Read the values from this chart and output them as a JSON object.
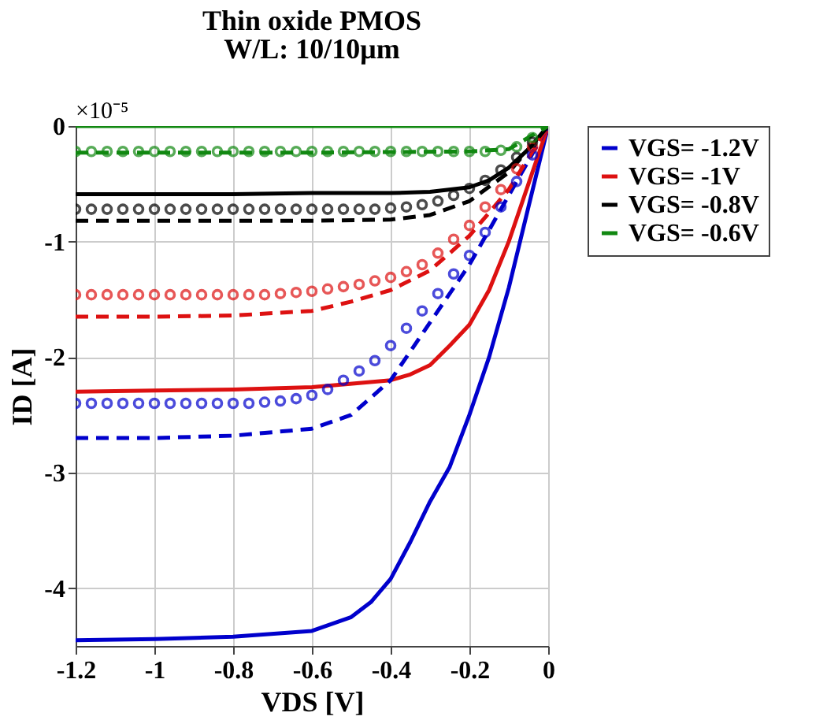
{
  "chart_data": {
    "type": "line",
    "title": "Thin oxide PMOS",
    "subtitle": "W/L: 10/10μm",
    "xlabel": "VDS [V]",
    "ylabel": "ID [A]",
    "annotations": [
      "×10⁻⁵"
    ],
    "xlim": [
      -1.2,
      0
    ],
    "ylim": [
      -4.5,
      0
    ],
    "xticks": [
      -1.2,
      -1,
      -0.8,
      -0.6,
      -0.4,
      -0.2,
      0
    ],
    "yticks": [
      -4,
      -3,
      -2,
      -1,
      0
    ],
    "grid": true,
    "legend": "right",
    "series": [
      {
        "name": "VGS= -1.2V",
        "color": "#0000cc",
        "line_style": "solid",
        "x": [
          -1.2,
          -1,
          -0.8,
          -0.6,
          -0.5,
          -0.45,
          -0.4,
          -0.35,
          -0.3,
          -0.25,
          -0.2,
          -0.15,
          -0.1,
          -0.05,
          0
        ],
        "values": [
          -4.45,
          -4.44,
          -4.42,
          -4.37,
          -4.25,
          -4.12,
          -3.92,
          -3.6,
          -3.25,
          -2.95,
          -2.5,
          -2.0,
          -1.4,
          -0.7,
          0
        ]
      },
      {
        "name": "VGS= -1V",
        "color": "#dd1111",
        "line_style": "solid",
        "x": [
          -1.2,
          -1,
          -0.8,
          -0.6,
          -0.4,
          -0.35,
          -0.3,
          -0.25,
          -0.2,
          -0.15,
          -0.1,
          -0.05,
          0
        ],
        "values": [
          -2.3,
          -2.29,
          -2.28,
          -2.26,
          -2.2,
          -2.15,
          -2.07,
          -1.9,
          -1.72,
          -1.42,
          -1.0,
          -0.5,
          0
        ]
      },
      {
        "name": "VGS= -0.8V",
        "color": "#000000",
        "line_style": "solid",
        "x": [
          -1.2,
          -1,
          -0.8,
          -0.6,
          -0.4,
          -0.3,
          -0.2,
          -0.15,
          -0.1,
          -0.05,
          0
        ],
        "values": [
          -0.59,
          -0.59,
          -0.59,
          -0.58,
          -0.58,
          -0.57,
          -0.53,
          -0.47,
          -0.36,
          -0.2,
          0
        ]
      },
      {
        "name": "VGS= -0.6V",
        "color": "#118811",
        "line_style": "solid",
        "x": [
          -1.2,
          -0.6,
          0
        ],
        "values": [
          0,
          0,
          0
        ]
      },
      {
        "color": "#0000cc",
        "line_style": "dashed",
        "x": [
          -1.2,
          -1,
          -0.8,
          -0.6,
          -0.5,
          -0.4,
          -0.3,
          -0.2,
          -0.1,
          0
        ],
        "values": [
          -2.7,
          -2.7,
          -2.68,
          -2.62,
          -2.5,
          -2.2,
          -1.7,
          -1.2,
          -0.6,
          0
        ]
      },
      {
        "color": "#dd1111",
        "line_style": "dashed",
        "x": [
          -1.2,
          -1,
          -0.8,
          -0.6,
          -0.5,
          -0.4,
          -0.3,
          -0.2,
          -0.1,
          0
        ],
        "values": [
          -1.65,
          -1.65,
          -1.64,
          -1.6,
          -1.52,
          -1.42,
          -1.25,
          -0.95,
          -0.55,
          0
        ]
      },
      {
        "color": "#000000",
        "line_style": "dashed",
        "x": [
          -1.2,
          -1,
          -0.8,
          -0.6,
          -0.4,
          -0.3,
          -0.2,
          -0.1,
          0
        ],
        "values": [
          -0.82,
          -0.82,
          -0.82,
          -0.82,
          -0.81,
          -0.77,
          -0.65,
          -0.4,
          0
        ]
      },
      {
        "color": "#118811",
        "line_style": "dashed",
        "x": [
          -1.2,
          -0.6,
          -0.2,
          -0.1,
          0
        ],
        "values": [
          -0.23,
          -0.23,
          -0.22,
          -0.2,
          0
        ]
      },
      {
        "color": "#0000cc",
        "type": "scatter",
        "marker": "circle",
        "x": [
          -1.2,
          -1.16,
          -1.12,
          -1.08,
          -1.04,
          -1.0,
          -0.96,
          -0.92,
          -0.88,
          -0.84,
          -0.8,
          -0.76,
          -0.72,
          -0.68,
          -0.64,
          -0.6,
          -0.56,
          -0.52,
          -0.48,
          -0.44,
          -0.4,
          -0.36,
          -0.32,
          -0.28,
          -0.24,
          -0.2,
          -0.16,
          -0.12,
          -0.08,
          -0.04
        ],
        "values": [
          -2.4,
          -2.4,
          -2.4,
          -2.4,
          -2.4,
          -2.4,
          -2.4,
          -2.4,
          -2.4,
          -2.4,
          -2.4,
          -2.4,
          -2.39,
          -2.38,
          -2.36,
          -2.33,
          -2.28,
          -2.2,
          -2.12,
          -2.03,
          -1.9,
          -1.75,
          -1.6,
          -1.45,
          -1.28,
          -1.12,
          -0.92,
          -0.7,
          -0.48,
          -0.25
        ]
      },
      {
        "color": "#dd1111",
        "type": "scatter",
        "marker": "circle",
        "x": [
          -1.2,
          -1.16,
          -1.12,
          -1.08,
          -1.04,
          -1.0,
          -0.96,
          -0.92,
          -0.88,
          -0.84,
          -0.8,
          -0.76,
          -0.72,
          -0.68,
          -0.64,
          -0.6,
          -0.56,
          -0.52,
          -0.48,
          -0.44,
          -0.4,
          -0.36,
          -0.32,
          -0.28,
          -0.24,
          -0.2,
          -0.16,
          -0.12,
          -0.08,
          -0.04
        ],
        "values": [
          -1.46,
          -1.46,
          -1.46,
          -1.46,
          -1.46,
          -1.46,
          -1.46,
          -1.46,
          -1.46,
          -1.46,
          -1.46,
          -1.46,
          -1.46,
          -1.45,
          -1.44,
          -1.43,
          -1.41,
          -1.39,
          -1.37,
          -1.34,
          -1.31,
          -1.26,
          -1.2,
          -1.1,
          -0.98,
          -0.86,
          -0.7,
          -0.55,
          -0.37,
          -0.18
        ]
      },
      {
        "color": "#000000",
        "type": "scatter",
        "marker": "circle",
        "x": [
          -1.2,
          -1.16,
          -1.12,
          -1.08,
          -1.04,
          -1.0,
          -0.96,
          -0.92,
          -0.88,
          -0.84,
          -0.8,
          -0.76,
          -0.72,
          -0.68,
          -0.64,
          -0.6,
          -0.56,
          -0.52,
          -0.48,
          -0.44,
          -0.4,
          -0.36,
          -0.32,
          -0.28,
          -0.24,
          -0.2,
          -0.16,
          -0.12,
          -0.08,
          -0.04
        ],
        "values": [
          -0.72,
          -0.72,
          -0.72,
          -0.72,
          -0.72,
          -0.72,
          -0.72,
          -0.72,
          -0.72,
          -0.72,
          -0.72,
          -0.72,
          -0.72,
          -0.72,
          -0.72,
          -0.72,
          -0.72,
          -0.72,
          -0.72,
          -0.72,
          -0.71,
          -0.7,
          -0.68,
          -0.65,
          -0.6,
          -0.54,
          -0.47,
          -0.38,
          -0.27,
          -0.14
        ]
      },
      {
        "color": "#118811",
        "type": "scatter",
        "marker": "circle",
        "x": [
          -1.2,
          -1.16,
          -1.12,
          -1.08,
          -1.04,
          -1.0,
          -0.96,
          -0.92,
          -0.88,
          -0.84,
          -0.8,
          -0.76,
          -0.72,
          -0.68,
          -0.64,
          -0.6,
          -0.56,
          -0.52,
          -0.48,
          -0.44,
          -0.4,
          -0.36,
          -0.32,
          -0.28,
          -0.24,
          -0.2,
          -0.16,
          -0.12,
          -0.08,
          -0.04
        ],
        "values": [
          -0.22,
          -0.22,
          -0.22,
          -0.22,
          -0.22,
          -0.22,
          -0.22,
          -0.22,
          -0.22,
          -0.22,
          -0.22,
          -0.22,
          -0.22,
          -0.22,
          -0.22,
          -0.22,
          -0.22,
          -0.22,
          -0.22,
          -0.22,
          -0.22,
          -0.22,
          -0.22,
          -0.22,
          -0.22,
          -0.22,
          -0.22,
          -0.21,
          -0.18,
          -0.1
        ]
      }
    ]
  }
}
